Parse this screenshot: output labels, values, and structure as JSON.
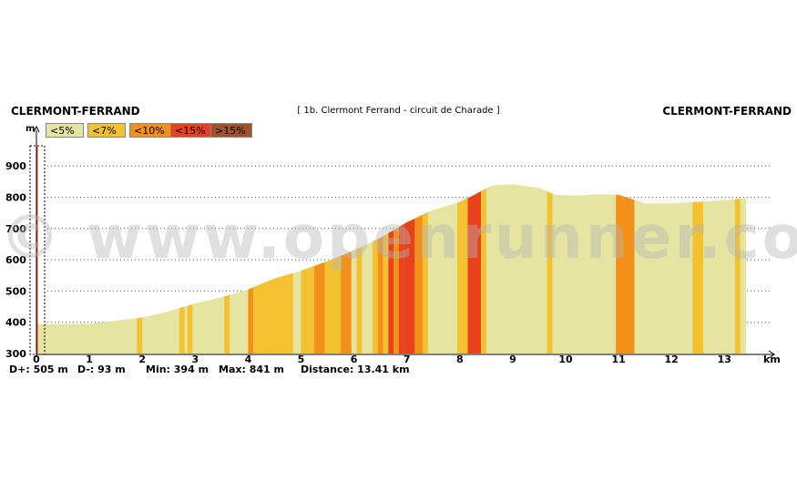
{
  "header": {
    "start_place": "CLERMONT-FERRAND",
    "end_place": "CLERMONT-FERRAND",
    "route_title": "[ 1b. Clermont Ferrand - circuit de Charade ]"
  },
  "legend": [
    {
      "label": "<5%",
      "color": "#e5e5a1"
    },
    {
      "label": "<7%",
      "color": "#f4c231"
    },
    {
      "label": "<10%",
      "color": "#f2901a"
    },
    {
      "label": "<15%",
      "color": "#e8411e"
    },
    {
      "label": ">15%",
      "color": "#a0522d"
    }
  ],
  "stats": {
    "d_plus": "D+: 505 m",
    "d_minus": "D-: 93 m",
    "min": "Min: 394 m",
    "max": "Max: 841 m",
    "distance": "Distance: 13.41 km"
  },
  "watermark": "© www.openrunner.com",
  "chart_data": {
    "type": "area",
    "title": "",
    "xlabel": "km",
    "ylabel": "m",
    "xlim": [
      0,
      13.41
    ],
    "ylim": [
      300,
      900
    ],
    "xticks": [
      "0",
      "1",
      "2",
      "3",
      "4",
      "5",
      "6",
      "7",
      "8",
      "9",
      "10",
      "11",
      "12",
      "13"
    ],
    "yticks": [
      "300",
      "400",
      "500",
      "600",
      "700",
      "800",
      "900"
    ],
    "grid": "horizontal dotted",
    "profile": [
      [
        0,
        394
      ],
      [
        1,
        395
      ],
      [
        1.5,
        405
      ],
      [
        2,
        415
      ],
      [
        2.5,
        435
      ],
      [
        3,
        460
      ],
      [
        3.5,
        480
      ],
      [
        4,
        505
      ],
      [
        4.5,
        540
      ],
      [
        5,
        565
      ],
      [
        5.5,
        595
      ],
      [
        6,
        630
      ],
      [
        6.5,
        670
      ],
      [
        7,
        720
      ],
      [
        7.5,
        760
      ],
      [
        8,
        785
      ],
      [
        8.3,
        810
      ],
      [
        8.6,
        838
      ],
      [
        9,
        841
      ],
      [
        9.5,
        830
      ],
      [
        9.8,
        808
      ],
      [
        10.2,
        805
      ],
      [
        10.6,
        810
      ],
      [
        11,
        808
      ],
      [
        11.5,
        780
      ],
      [
        12,
        780
      ],
      [
        12.5,
        785
      ],
      [
        13,
        790
      ],
      [
        13.41,
        798
      ]
    ],
    "gradient_segments": [
      {
        "from": 1.9,
        "to": 2.0,
        "class": "<7%"
      },
      {
        "from": 2.7,
        "to": 2.8,
        "class": "<7%"
      },
      {
        "from": 2.85,
        "to": 2.95,
        "class": "<7%"
      },
      {
        "from": 3.55,
        "to": 3.65,
        "class": "<7%"
      },
      {
        "from": 4.0,
        "to": 4.1,
        "class": "<10%"
      },
      {
        "from": 4.1,
        "to": 4.85,
        "class": "<7%"
      },
      {
        "from": 5.0,
        "to": 5.25,
        "class": "<7%"
      },
      {
        "from": 5.25,
        "to": 5.45,
        "class": "<10%"
      },
      {
        "from": 5.45,
        "to": 5.75,
        "class": "<7%"
      },
      {
        "from": 5.75,
        "to": 5.95,
        "class": "<10%"
      },
      {
        "from": 6.05,
        "to": 6.15,
        "class": "<7%"
      },
      {
        "from": 6.35,
        "to": 6.45,
        "class": "<7%"
      },
      {
        "from": 6.45,
        "to": 6.55,
        "class": "<10%"
      },
      {
        "from": 6.55,
        "to": 6.65,
        "class": "<7%"
      },
      {
        "from": 6.65,
        "to": 6.75,
        "class": "<15%"
      },
      {
        "from": 6.75,
        "to": 6.85,
        "class": "<10%"
      },
      {
        "from": 6.85,
        "to": 6.95,
        "class": "<15%"
      },
      {
        "from": 6.95,
        "to": 7.15,
        "class": "<15%"
      },
      {
        "from": 7.15,
        "to": 7.3,
        "class": "<10%"
      },
      {
        "from": 7.3,
        "to": 7.4,
        "class": "<7%"
      },
      {
        "from": 7.95,
        "to": 8.15,
        "class": "<7%"
      },
      {
        "from": 8.15,
        "to": 8.4,
        "class": "<15%"
      },
      {
        "from": 8.4,
        "to": 8.5,
        "class": "<7%"
      },
      {
        "from": 9.65,
        "to": 9.75,
        "class": "<7%"
      },
      {
        "from": 10.95,
        "to": 11.05,
        "class": "<10%"
      },
      {
        "from": 11.05,
        "to": 11.3,
        "class": "<10%"
      },
      {
        "from": 12.4,
        "to": 12.6,
        "class": "<7%"
      },
      {
        "from": 13.2,
        "to": 13.3,
        "class": "<7%"
      }
    ]
  }
}
